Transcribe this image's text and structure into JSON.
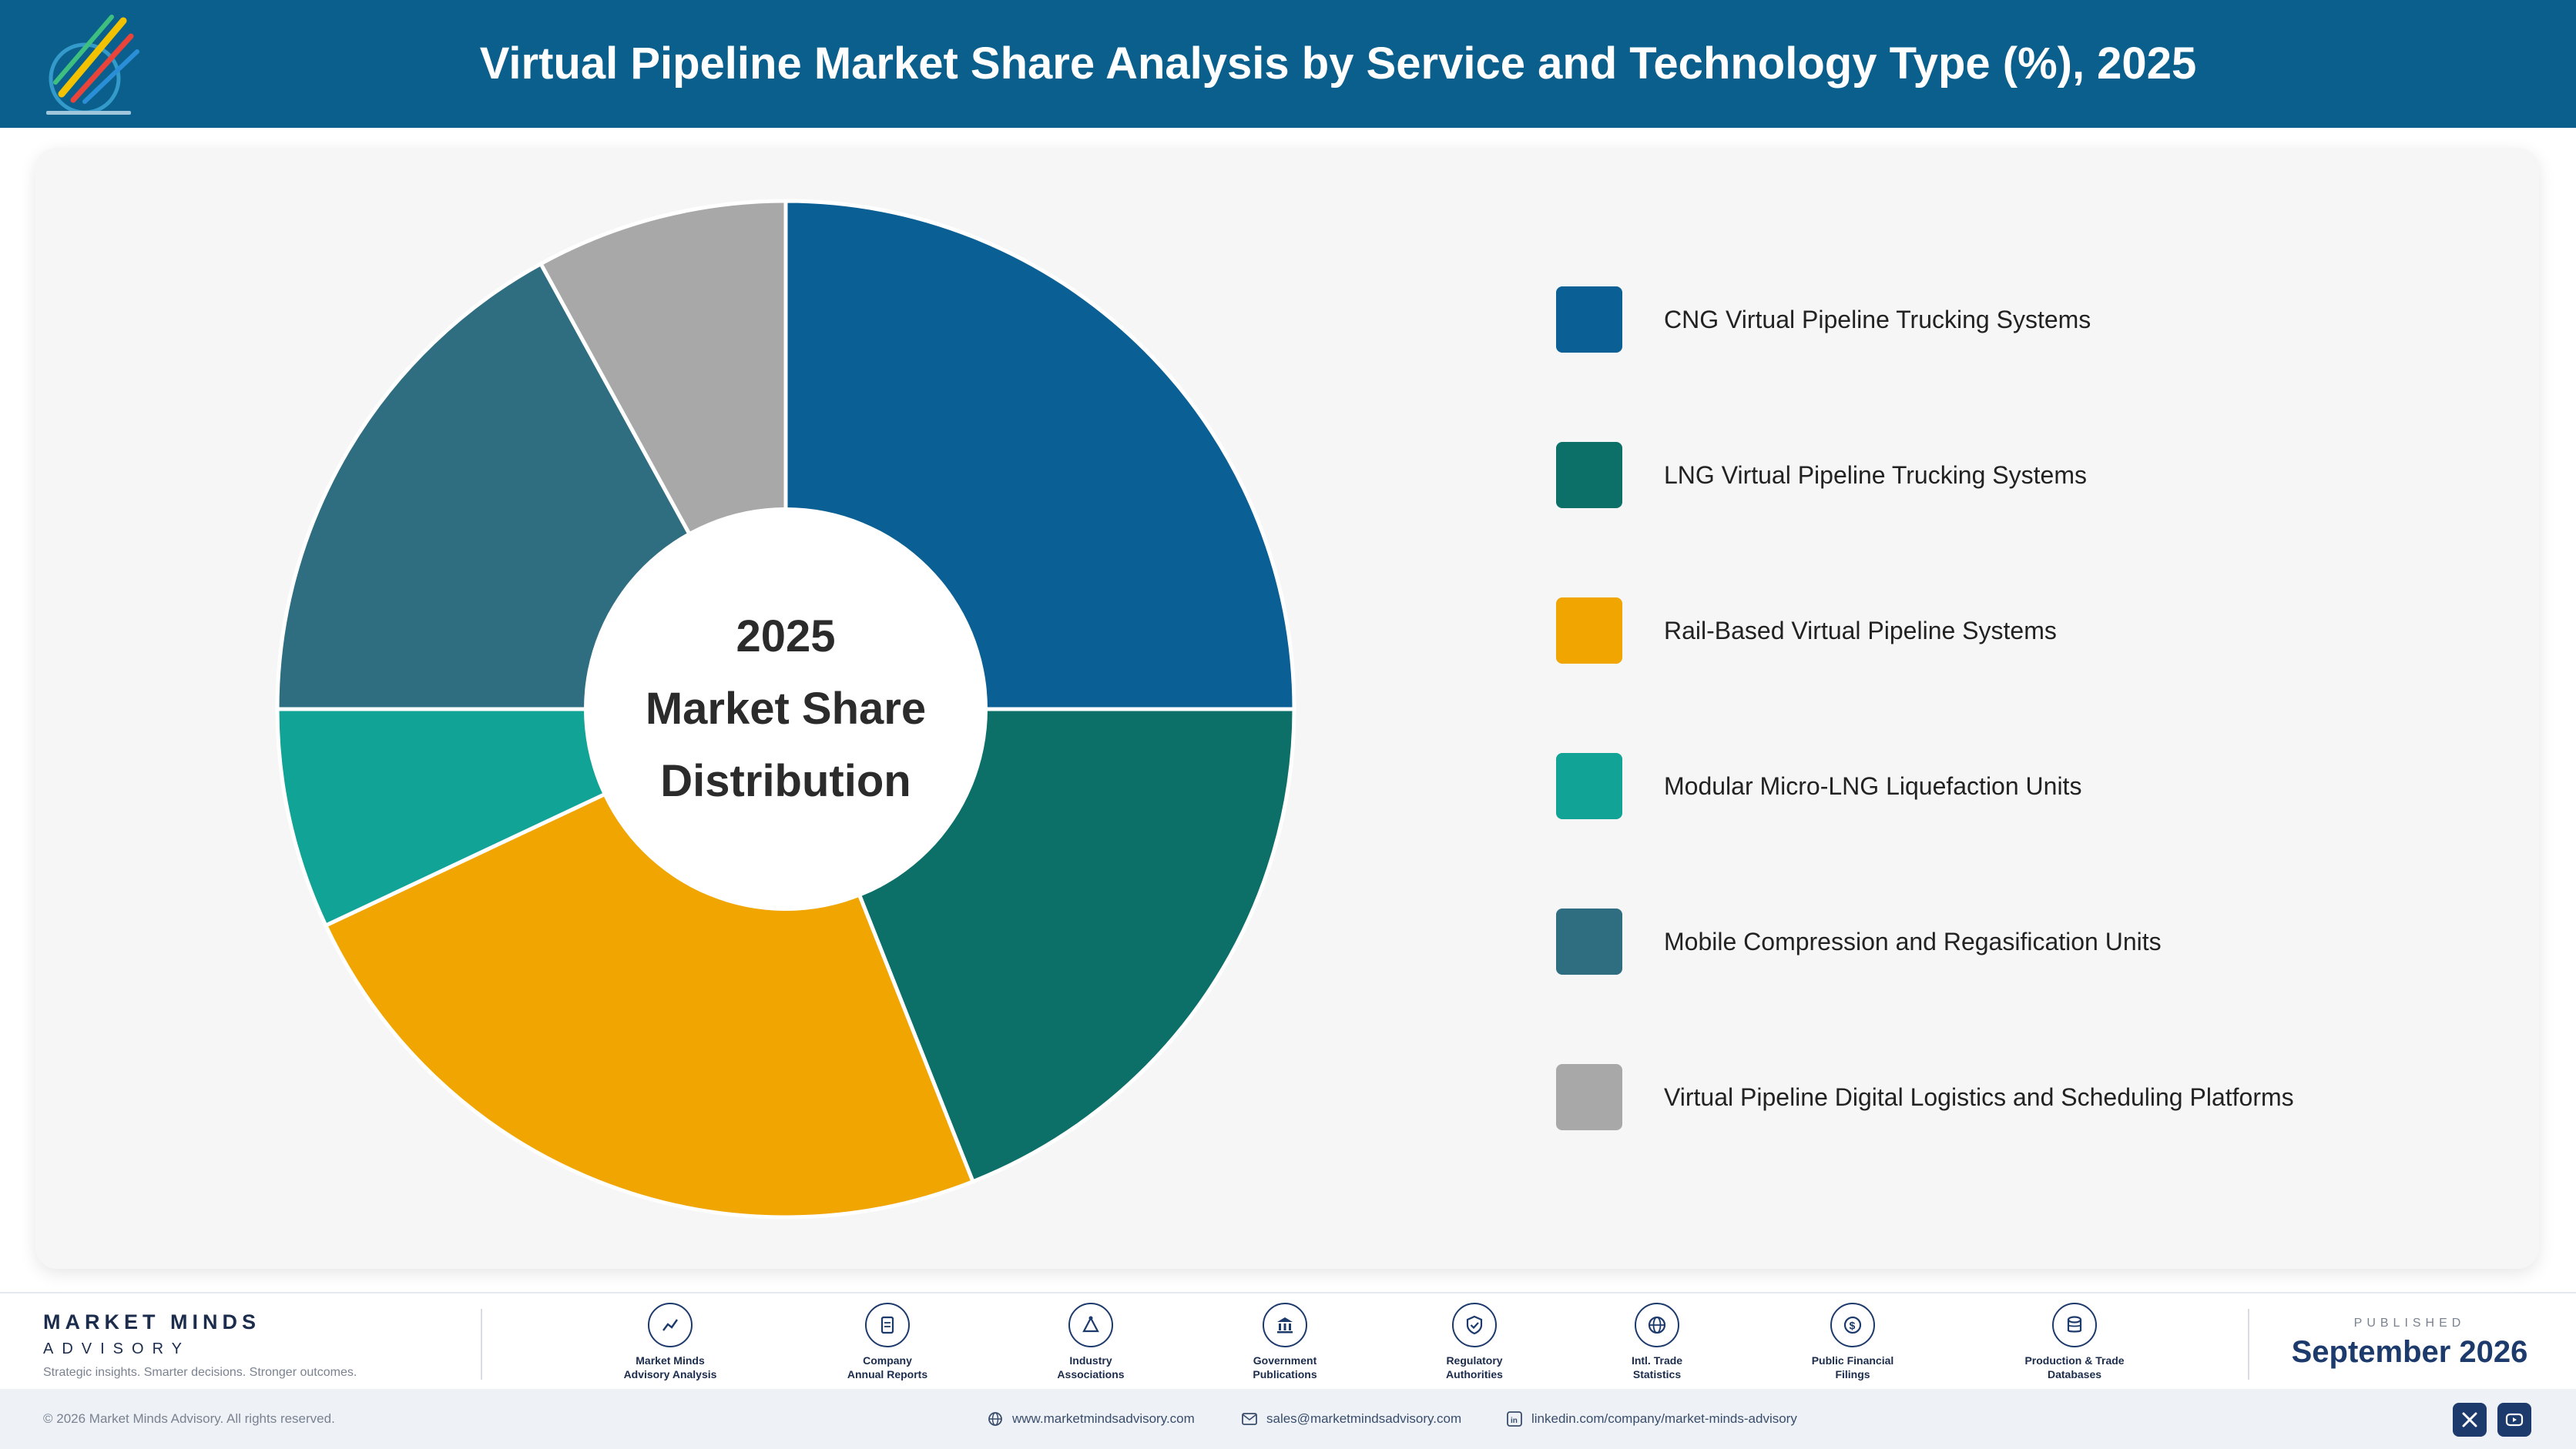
{
  "header": {
    "title": "Virtual Pipeline Market Share Analysis by Service and Technology Type (%), 2025",
    "logo_icon": "market-minds-logo-icon"
  },
  "chart_data": {
    "type": "pie",
    "style": "donut",
    "center_label": [
      "2025",
      "Market Share",
      "Distribution"
    ],
    "categories": [
      "CNG Virtual Pipeline Trucking Systems",
      "LNG Virtual Pipeline Trucking Systems",
      "Rail-Based Virtual Pipeline Systems",
      "Modular Micro-LNG Liquefaction Units",
      "Mobile Compression and Regasification Units",
      "Virtual Pipeline Digital Logistics and Scheduling Platforms"
    ],
    "values": [
      25,
      19,
      24,
      7,
      17,
      8
    ],
    "colors": [
      "#0a5f94",
      "#0d7068",
      "#f0a500",
      "#11a396",
      "#2f6d80",
      "#a8a8a8"
    ],
    "legend_position": "right"
  },
  "footer": {
    "brand_name": "MARKET MINDS",
    "brand_sub": "ADVISORY",
    "brand_tagline": "Strategic insights. Smarter decisions. Stronger outcomes.",
    "sources": [
      {
        "line1": "Market Minds",
        "line2": "Advisory Analysis",
        "icon": "trend-chart-icon"
      },
      {
        "line1": "Company",
        "line2": "Annual Reports",
        "icon": "document-icon"
      },
      {
        "line1": "Industry",
        "line2": "Associations",
        "icon": "network-icon"
      },
      {
        "line1": "Government",
        "line2": "Publications",
        "icon": "government-building-icon"
      },
      {
        "line1": "Regulatory",
        "line2": "Authorities",
        "icon": "shield-check-icon"
      },
      {
        "line1": "Intl. Trade",
        "line2": "Statistics",
        "icon": "globe-icon"
      },
      {
        "line1": "Public Financial",
        "line2": "Filings",
        "icon": "dollar-coin-icon"
      },
      {
        "line1": "Production & Trade",
        "line2": "Databases",
        "icon": "database-icon"
      }
    ],
    "published_label": "PUBLISHED",
    "published_date": "September 2026"
  },
  "bottom_bar": {
    "copyright": "© 2026 Market Minds Advisory. All rights reserved.",
    "website": "www.marketmindsadvisory.com",
    "email": "sales@marketmindsadvisory.com",
    "linkedin": "linkedin.com/company/market-minds-advisory",
    "social_icons": [
      "x-icon",
      "youtube-icon"
    ]
  }
}
